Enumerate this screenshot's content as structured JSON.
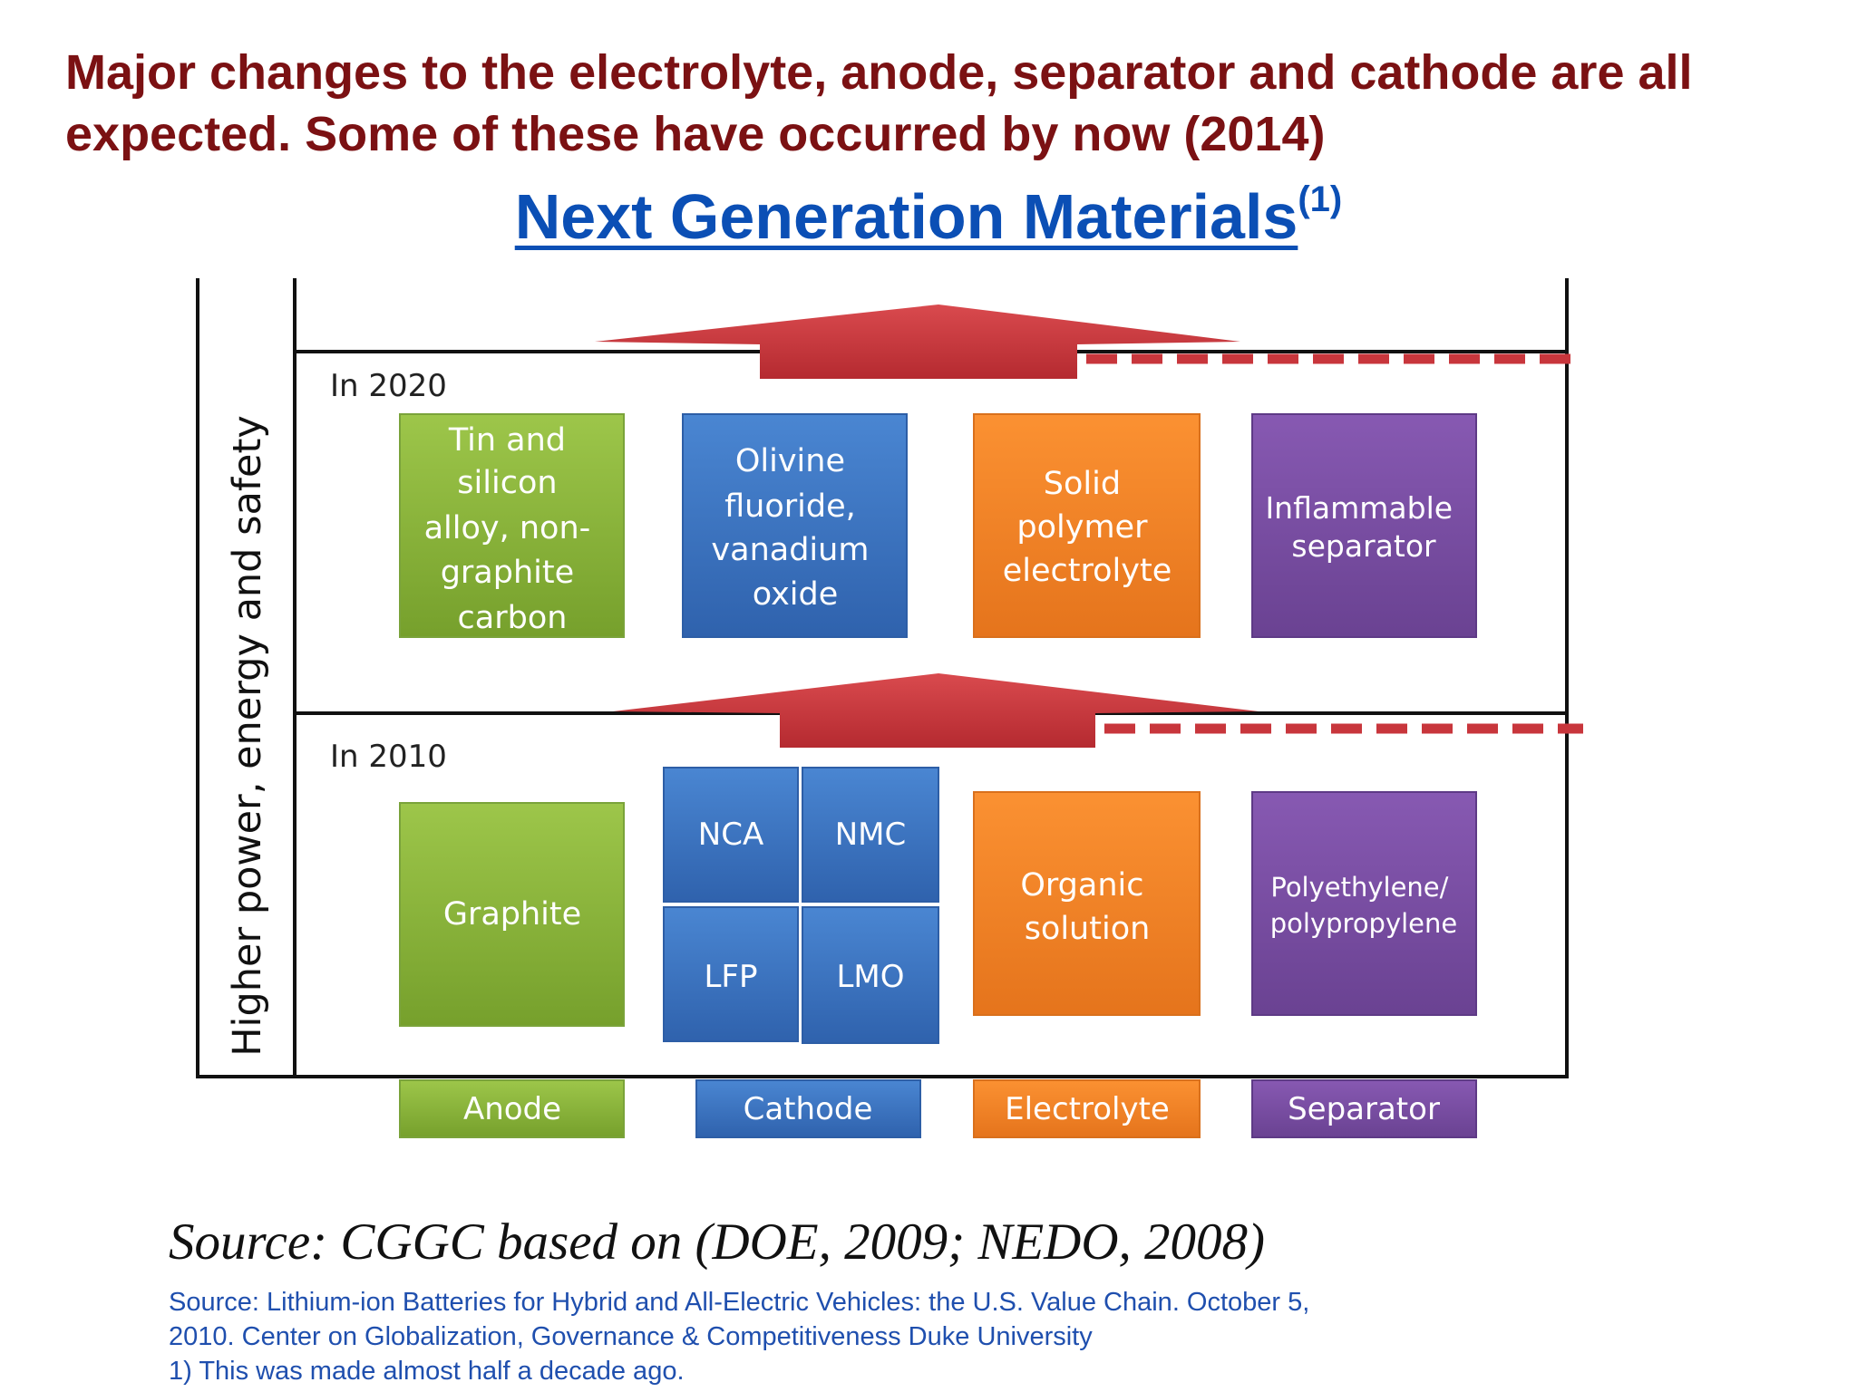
{
  "headline": {
    "line1": "Major changes to the electrolyte, anode, separator and cathode are all",
    "line2": "expected. Some of these have occurred by now (2014)"
  },
  "subtitle": {
    "text": "Next Generation Materials",
    "superscript": "(1)"
  },
  "diagram": {
    "y_axis_label": "Higher power, energy and safety",
    "tiers": [
      {
        "label": "In 2020",
        "anode": [
          "Tin and",
          "silicon",
          "alloy, non-",
          "graphite",
          "carbon"
        ],
        "cathode": [
          "Olivine",
          "fluoride,",
          "vanadium",
          "oxide"
        ],
        "electrolyte": [
          "Solid",
          "polymer",
          "electrolyte"
        ],
        "separator": [
          "Inflammable",
          "separator"
        ]
      },
      {
        "label": "In 2010",
        "anode": [
          "Graphite"
        ],
        "cathode_cells": [
          "NCA",
          "NMC",
          "LFP",
          "LMO"
        ],
        "electrolyte": [
          "Organic",
          "solution"
        ],
        "separator": [
          "Polyethylene/",
          "polypropylene"
        ]
      }
    ],
    "categories": [
      "Anode",
      "Cathode",
      "Electrolyte",
      "Separator"
    ],
    "colors": {
      "anode": "#8db63c",
      "cathode": "#3f79c6",
      "electrolyte": "#f5842a",
      "separator": "#7b52a3",
      "arrow": "#c8363c",
      "headline": "#7b1113",
      "link": "#0b4fb5"
    }
  },
  "source_main": "Source: CGGC based on (DOE, 2009; NEDO, 2008)",
  "footnote": {
    "line1": "Source: Lithium-ion Batteries for Hybrid and All-Electric Vehicles: the U.S. Value Chain. October 5,",
    "line2": "2010. Center on Globalization, Governance & Competitiveness Duke University",
    "line3": "1) This was made almost half a decade ago."
  }
}
